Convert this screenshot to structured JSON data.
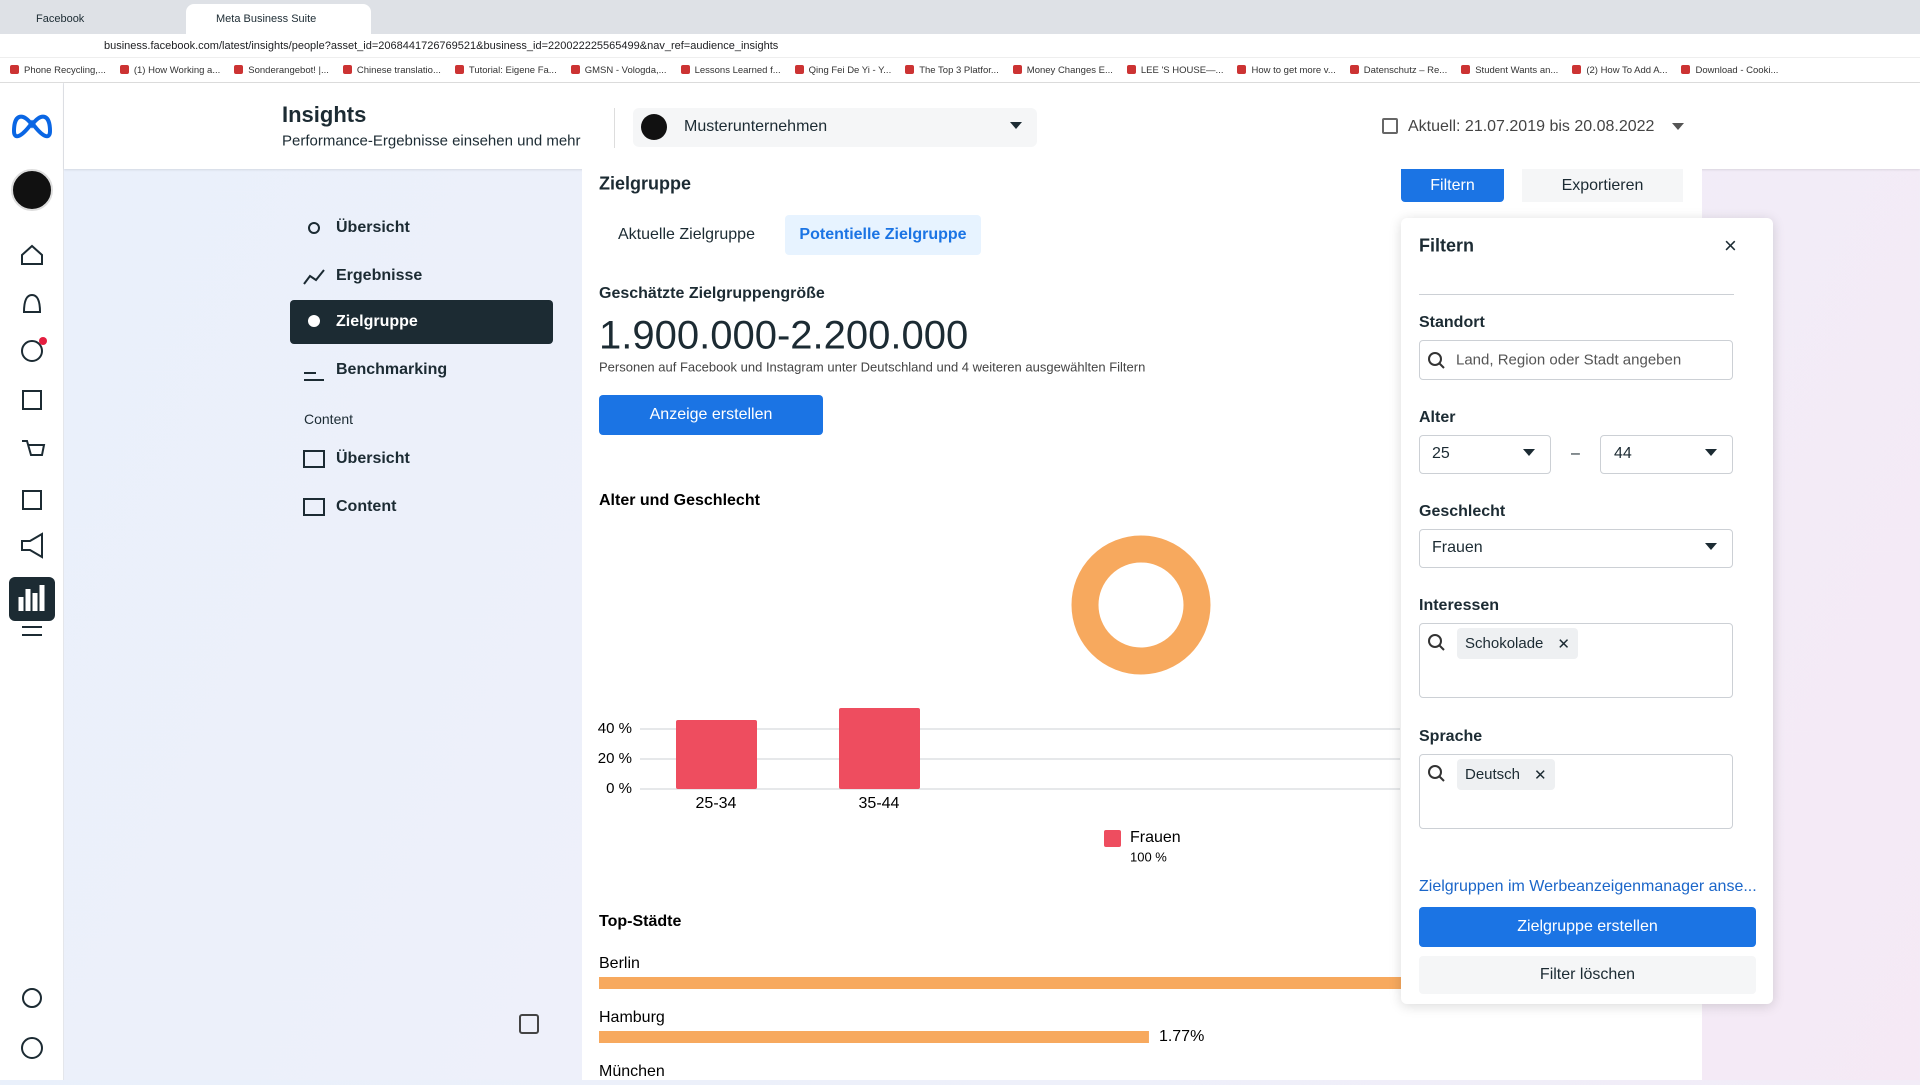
{
  "browser": {
    "tabs": [
      "Facebook",
      "Meta Business Suite"
    ],
    "url": "business.facebook.com/latest/insights/people?asset_id=2068441726769521&business_id=220022225565499&nav_ref=audience_insights",
    "bookmarks": [
      "Phone Recycling,...",
      "(1) How Working a...",
      "Sonderangebot! |...",
      "Chinese translatio...",
      "Tutorial: Eigene Fa...",
      "GMSN - Vologda,...",
      "Lessons Learned f...",
      "Qing Fei De Yi - Y...",
      "The Top 3 Platfor...",
      "Money Changes E...",
      "LEE 'S HOUSE—...",
      "How to get more v...",
      "Datenschutz – Re...",
      "Student Wants an...",
      "(2) How To Add A...",
      "Download - Cooki..."
    ]
  },
  "header": {
    "title": "Insights",
    "subtitle": "Performance-Ergebnisse einsehen und mehr",
    "account": "Musterunternehmen",
    "date_range": "Aktuell: 21.07.2019 bis 20.08.2022"
  },
  "sidebar": {
    "items": [
      "Übersicht",
      "Ergebnisse",
      "Zielgruppe",
      "Benchmarking"
    ],
    "section": "Content",
    "content_items": [
      "Übersicht",
      "Content"
    ]
  },
  "main": {
    "title": "Zielgruppe",
    "filter_button": "Filtern",
    "export_button": "Exportieren",
    "tabs": [
      "Aktuelle Zielgruppe",
      "Potentielle Zielgruppe"
    ],
    "size_label": "Geschätzte Zielgruppengröße",
    "size": "1.900.000-2.200.000",
    "size_note": "Personen auf Facebook und Instagram unter Deutschland und 4 weiteren ausgewählten Filtern",
    "cta": "Anzeige erstellen"
  },
  "filter_panel": {
    "title": "Filtern",
    "location_label": "Standort",
    "location_placeholder": "Land, Region oder Stadt angeben",
    "age_label": "Alter",
    "age_min": "25",
    "age_separator": "–",
    "age_max": "44",
    "gender_label": "Geschlecht",
    "gender": "Frauen",
    "interests_label": "Interessen",
    "interests": [
      "Schokolade"
    ],
    "language_label": "Sprache",
    "languages": [
      "Deutsch"
    ],
    "link": "Zielgruppen im Werbeanzeigenmanager anse...",
    "primary_button": "Zielgruppe erstellen",
    "secondary_button": "Filter löschen"
  },
  "chart_data": [
    {
      "type": "pie",
      "title": "Alter und Geschlecht",
      "values": [
        100
      ],
      "value_labels": [
        "100 %"
      ],
      "color": "#f7a95e"
    },
    {
      "type": "bar",
      "categories": [
        "25-34",
        "35-44"
      ],
      "series": [
        {
          "name": "Frauen",
          "color": "#ee4d5f",
          "values": [
            46,
            54
          ]
        }
      ],
      "ylim": [
        0,
        55
      ],
      "yticks": [
        {
          "value": 0,
          "label": "0 %"
        },
        {
          "value": 20,
          "label": "20 %"
        },
        {
          "value": 40,
          "label": "40 %"
        }
      ],
      "grid": true
    },
    {
      "type": "bar",
      "orientation": "horizontal",
      "title": "Top-Städte",
      "categories": [
        "Berlin",
        "Hamburg",
        "München"
      ],
      "values": [
        2.9,
        1.77,
        null
      ],
      "value_labels": [
        null,
        "1.77%",
        null
      ],
      "color": "#f7a95e",
      "xlim": [
        0,
        3.55
      ]
    }
  ]
}
